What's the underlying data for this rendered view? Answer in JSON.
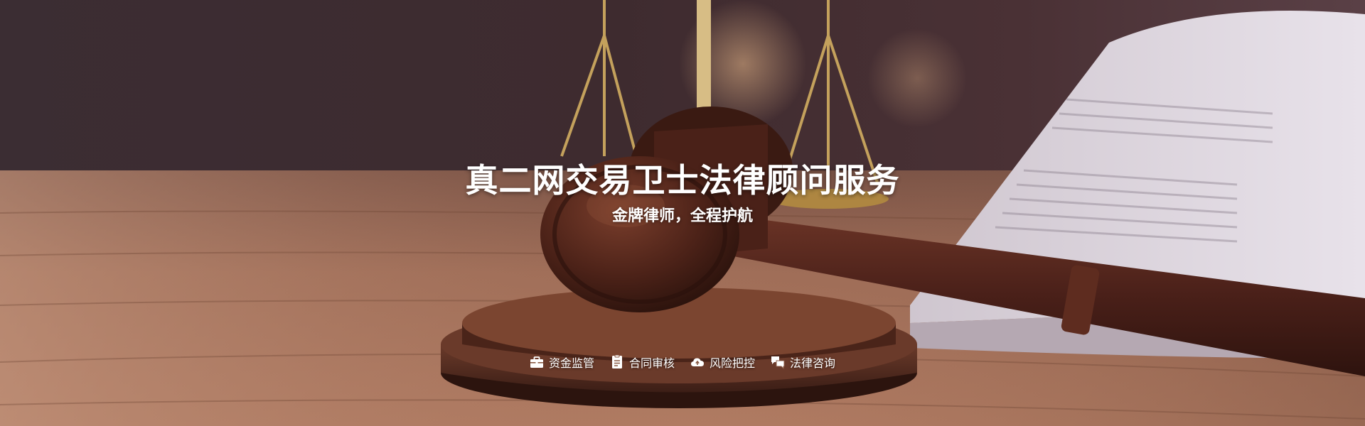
{
  "hero": {
    "title": "真二网交易卫士法律顾问服务",
    "subtitle": "金牌律师，全程护航"
  },
  "features": [
    {
      "label": "资金监管",
      "icon": "briefcase-icon"
    },
    {
      "label": "合同审核",
      "icon": "document-icon"
    },
    {
      "label": "风险把控",
      "icon": "cloud-icon"
    },
    {
      "label": "法律咨询",
      "icon": "chat-icon"
    }
  ],
  "colors": {
    "text": "#ffffff",
    "wood": "#8a5a44",
    "gavel": "#4a231a",
    "backdrop": "#3a2a2c"
  }
}
